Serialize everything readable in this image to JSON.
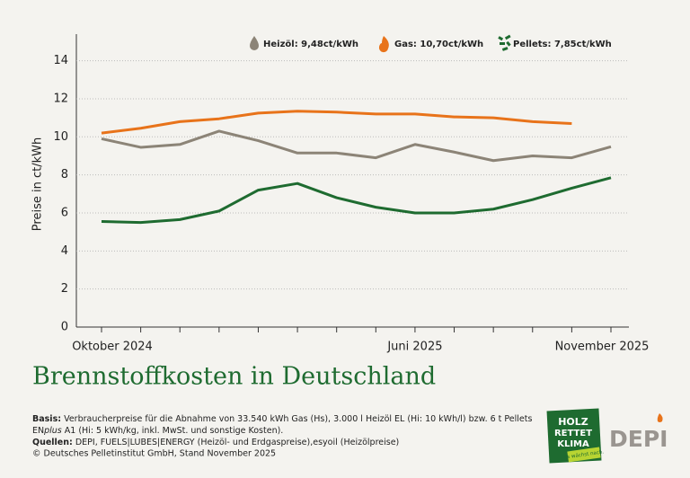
{
  "chart_data": {
    "type": "line",
    "title": "Brennstoffkosten in Deutschland",
    "y_label": "Preise in ct/kWh",
    "categories": [
      "Oktober 2024",
      null,
      null,
      null,
      null,
      null,
      null,
      null,
      "Juni 2025",
      null,
      null,
      null,
      null,
      "November 2025"
    ],
    "series": [
      {
        "name": "Heizöl: 9,48ct/kWh",
        "color": "#8c8477",
        "values": [
          9.9,
          9.45,
          9.6,
          10.3,
          9.8,
          9.15,
          9.15,
          8.9,
          9.6,
          9.2,
          8.75,
          9.0,
          8.9,
          9.48
        ]
      },
      {
        "name": "Gas: 10,70ct/kWh",
        "color": "#e8731a",
        "values": [
          10.2,
          10.45,
          10.8,
          10.95,
          11.25,
          11.35,
          11.3,
          11.2,
          11.2,
          11.05,
          11.0,
          10.8,
          10.7,
          null
        ]
      },
      {
        "name": "Pellets: 7,85ct/kWh",
        "color": "#1e6b30",
        "values": [
          5.55,
          5.5,
          5.65,
          6.1,
          7.2,
          7.55,
          6.8,
          6.3,
          6.0,
          6.0,
          6.2,
          6.7,
          7.3,
          7.85
        ]
      }
    ],
    "ylim": [
      0,
      15.4
    ],
    "yticks": [
      0,
      2,
      4,
      6,
      8,
      10,
      12,
      14
    ],
    "grid": true
  },
  "footer": {
    "basis_label": "Basis:",
    "basis_text": "Verbraucherpreise für die Abnahme von 33.540 kWh Gas (Hs), 3.000 l Heizöl EL (Hi: 10 kWh/l) bzw. 6 t Pellets",
    "basis_en": "EN",
    "basis_plus": "plus",
    "basis_rest": " A1 (Hi: 5 kWh/kg, inkl. MwSt. und sonstige Kosten).",
    "sources_label": "Quellen:",
    "sources_text": "DEPI, FUELS|LUBES|ENERGY (Heizöl- und Erdgaspreise),esyoil (Heizölpreise)",
    "copyright": "© Deutsches Pelletinstitut GmbH, Stand November 2025"
  },
  "logos": {
    "holz": "HOLZ",
    "rettet": "RETTET",
    "klima": "KLIMA",
    "slogan": "Es wächst nach.",
    "depi": "DEPI"
  }
}
